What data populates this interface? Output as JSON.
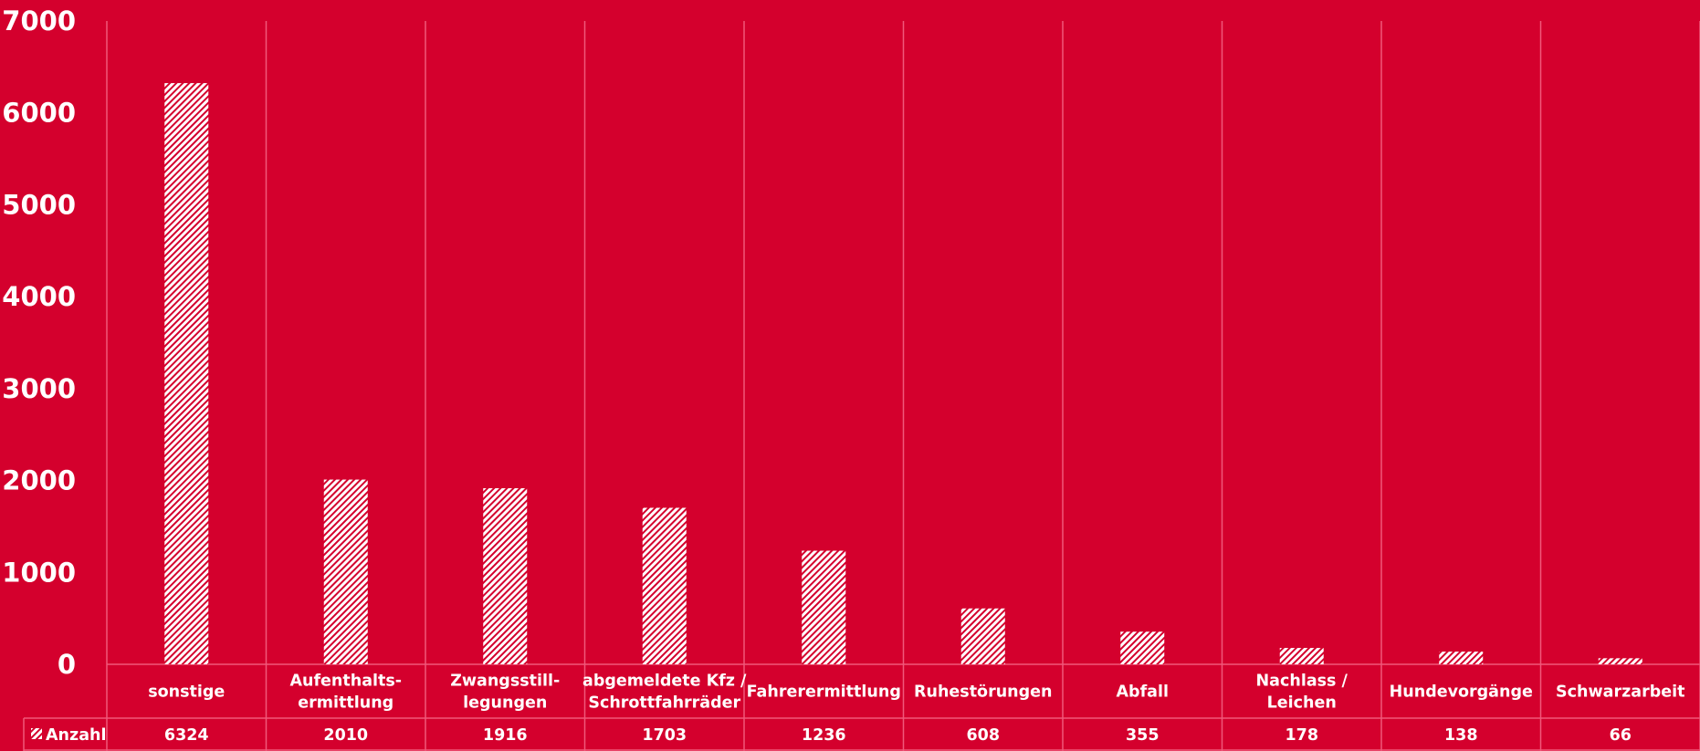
{
  "colors": {
    "background": "#d4002d",
    "bar_fill": "#ffffff",
    "grid": "#f0587a",
    "text": "#ffffff"
  },
  "chart_data": {
    "type": "bar",
    "title": "",
    "xlabel": "",
    "ylabel": "",
    "ylim": [
      0,
      7000
    ],
    "yticks": [
      0,
      1000,
      2000,
      3000,
      4000,
      5000,
      6000,
      7000
    ],
    "grid": "vertical",
    "bar_pattern": "diagonal-hatch",
    "legend": "data-table",
    "categories": [
      [
        "sonstige"
      ],
      [
        "Aufenthalts-",
        "ermittlung"
      ],
      [
        "Zwangsstill-",
        "legungen"
      ],
      [
        "abgemeldete Kfz /",
        "Schrottfahrräder"
      ],
      [
        "Fahrerermittlung"
      ],
      [
        "Ruhestörungen"
      ],
      [
        "Abfall"
      ],
      [
        "Nachlass /",
        "Leichen"
      ],
      [
        "Hundevorgänge"
      ],
      [
        "Schwarzarbeit"
      ]
    ],
    "series": [
      {
        "name": "Anzahl",
        "values": [
          6324,
          2010,
          1916,
          1703,
          1236,
          608,
          355,
          178,
          138,
          66
        ]
      }
    ]
  }
}
